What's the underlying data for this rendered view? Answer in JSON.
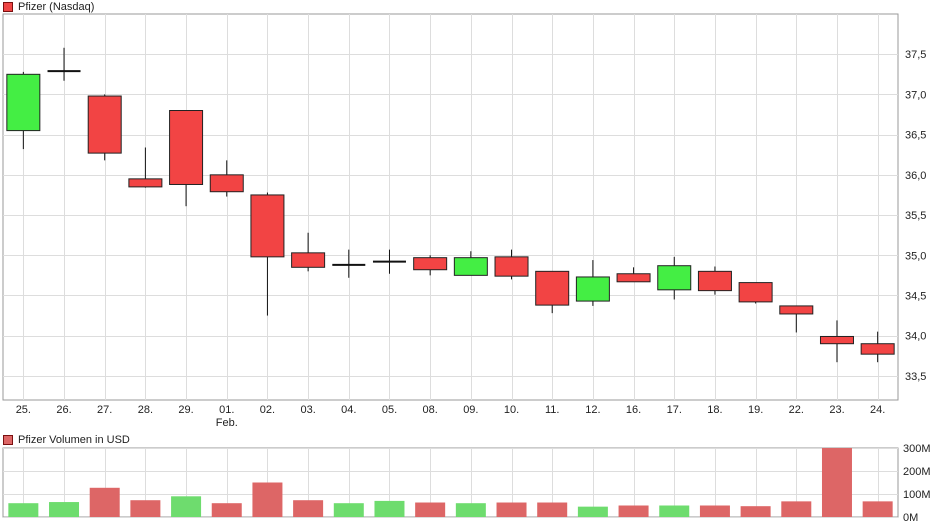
{
  "legends": {
    "price": {
      "label": "Pfizer (Nasdaq)",
      "color": "#ee4444"
    },
    "volume": {
      "label": "Pfizer Volumen in USD",
      "color": "#dd6666"
    }
  },
  "colors": {
    "up": "#44ee44",
    "down": "#f24444",
    "vol_up": "#6edc6e",
    "vol_down": "#dd6666",
    "grid": "#dddddd",
    "frame": "#999999"
  },
  "chart_data": [
    {
      "type": "candlestick",
      "title": "Pfizer (Nasdaq)",
      "categories": [
        "25.",
        "26.",
        "27.",
        "28.",
        "29.",
        "01.",
        "02.",
        "03.",
        "04.",
        "05.",
        "08.",
        "09.",
        "10.",
        "11.",
        "12.",
        "16.",
        "17.",
        "18.",
        "19.",
        "22.",
        "23.",
        "24."
      ],
      "category_sublabels": {
        "01.": "Feb."
      },
      "ylim": [
        33.2,
        38.0
      ],
      "yticks": [
        33.5,
        34.0,
        34.5,
        35.0,
        35.5,
        36.0,
        36.5,
        37.0,
        37.5
      ],
      "ytick_labels": [
        "33,5",
        "34,0",
        "34,5",
        "35,0",
        "35,5",
        "36,0",
        "36,5",
        "37,0",
        "37,5"
      ],
      "ohlc": [
        {
          "o": 36.55,
          "h": 37.28,
          "l": 36.32,
          "c": 37.25
        },
        {
          "o": 37.29,
          "h": 37.58,
          "l": 37.17,
          "c": 37.29
        },
        {
          "o": 36.98,
          "h": 37.0,
          "l": 36.18,
          "c": 36.27
        },
        {
          "o": 35.95,
          "h": 36.34,
          "l": 35.84,
          "c": 35.85
        },
        {
          "o": 36.8,
          "h": 36.8,
          "l": 35.61,
          "c": 35.88
        },
        {
          "o": 36.0,
          "h": 36.18,
          "l": 35.73,
          "c": 35.79
        },
        {
          "o": 35.75,
          "h": 35.78,
          "l": 34.25,
          "c": 34.98
        },
        {
          "o": 35.03,
          "h": 35.28,
          "l": 34.8,
          "c": 34.85
        },
        {
          "o": 34.88,
          "h": 35.07,
          "l": 34.72,
          "c": 34.88
        },
        {
          "o": 34.92,
          "h": 35.07,
          "l": 34.77,
          "c": 34.92
        },
        {
          "o": 34.97,
          "h": 35.0,
          "l": 34.75,
          "c": 34.82
        },
        {
          "o": 34.75,
          "h": 35.05,
          "l": 34.75,
          "c": 34.97
        },
        {
          "o": 34.98,
          "h": 35.07,
          "l": 34.7,
          "c": 34.74
        },
        {
          "o": 34.8,
          "h": 34.8,
          "l": 34.28,
          "c": 34.38
        },
        {
          "o": 34.43,
          "h": 34.94,
          "l": 34.37,
          "c": 34.73
        },
        {
          "o": 34.77,
          "h": 34.85,
          "l": 34.67,
          "c": 34.67
        },
        {
          "o": 34.57,
          "h": 34.98,
          "l": 34.45,
          "c": 34.87
        },
        {
          "o": 34.8,
          "h": 34.86,
          "l": 34.51,
          "c": 34.56
        },
        {
          "o": 34.66,
          "h": 34.66,
          "l": 34.4,
          "c": 34.42
        },
        {
          "o": 34.37,
          "h": 34.37,
          "l": 34.04,
          "c": 34.27
        },
        {
          "o": 33.99,
          "h": 34.19,
          "l": 33.67,
          "c": 33.9
        },
        {
          "o": 33.9,
          "h": 34.05,
          "l": 33.67,
          "c": 33.77
        }
      ]
    },
    {
      "type": "bar",
      "title": "Pfizer Volumen in USD",
      "categories": [
        "25.",
        "26.",
        "27.",
        "28.",
        "29.",
        "01.",
        "02.",
        "03.",
        "04.",
        "05.",
        "08.",
        "09.",
        "10.",
        "11.",
        "12.",
        "16.",
        "17.",
        "18.",
        "19.",
        "22.",
        "23.",
        "24."
      ],
      "values": [
        60,
        65,
        127,
        73,
        90,
        60,
        150,
        73,
        60,
        70,
        63,
        60,
        63,
        63,
        45,
        50,
        50,
        50,
        47,
        68,
        300,
        68
      ],
      "value_unit": "M",
      "direction": [
        "up",
        "up",
        "down",
        "down",
        "up",
        "down",
        "down",
        "down",
        "up",
        "up",
        "down",
        "up",
        "down",
        "down",
        "up",
        "down",
        "up",
        "down",
        "down",
        "down",
        "down",
        "down"
      ],
      "ylim": [
        0,
        300
      ],
      "yticks": [
        0,
        100,
        200,
        300
      ],
      "ytick_labels": [
        "0M",
        "100M",
        "200M",
        "300M"
      ]
    }
  ]
}
